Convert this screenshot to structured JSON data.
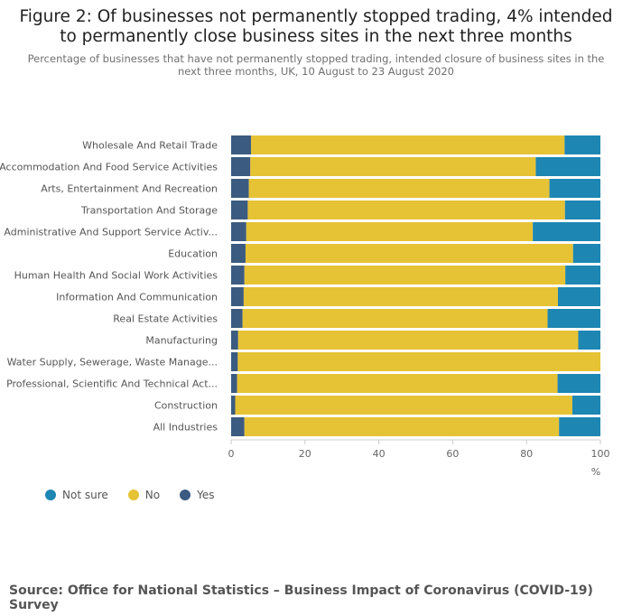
{
  "title": "Figure 2: Of businesses not permanently stopped trading, 4% intended to permanently close business sites in the next three months",
  "subtitle": "Percentage of businesses that have not permanently stopped trading, intended closure of business sites in the next three months, UK, 10 August to 23 August 2020",
  "source": "Source: Office for National Statistics – Business Impact of Coronavirus (COVID-19) Survey",
  "colors": {
    "yes": "#3b5b80",
    "no": "#e6c235",
    "not_sure": "#1d86b3"
  },
  "chart_data": {
    "type": "bar",
    "orientation": "horizontal",
    "stacked": true,
    "categories": [
      "Wholesale And Retail Trade",
      "Accommodation And Food Service Activities",
      "Arts, Entertainment And Recreation",
      "Transportation And Storage",
      "Administrative And Support Service Activ...",
      "Education",
      "Human Health And Social Work Activities",
      "Information And Communication",
      "Real Estate Activities",
      "Manufacturing",
      "Water Supply, Sewerage, Waste Manage...",
      "Professional, Scientific And Technical Act...",
      "Construction",
      "All Industries"
    ],
    "series": [
      {
        "name": "Yes",
        "values": [
          5.4,
          5.2,
          4.8,
          4.5,
          4.1,
          3.9,
          3.6,
          3.4,
          3.1,
          1.9,
          1.8,
          1.6,
          1.1,
          3.6
        ]
      },
      {
        "name": "No",
        "values": [
          84.9,
          77.3,
          81.4,
          85.9,
          77.6,
          88.7,
          86.9,
          85.1,
          82.6,
          92.1,
          98.2,
          86.8,
          91.3,
          85.2
        ]
      },
      {
        "name": "Not sure",
        "values": [
          9.7,
          17.5,
          13.8,
          9.6,
          18.3,
          7.4,
          9.5,
          11.5,
          14.3,
          6.0,
          0,
          11.6,
          7.6,
          11.2
        ]
      }
    ],
    "xlim": [
      0,
      100
    ],
    "xticks": [
      0,
      20,
      40,
      60,
      80,
      100
    ],
    "xunit": "%",
    "legend": [
      {
        "name": "Not sure"
      },
      {
        "name": "No"
      },
      {
        "name": "Yes"
      }
    ],
    "legend_position": "bottom-left",
    "grid": false
  }
}
